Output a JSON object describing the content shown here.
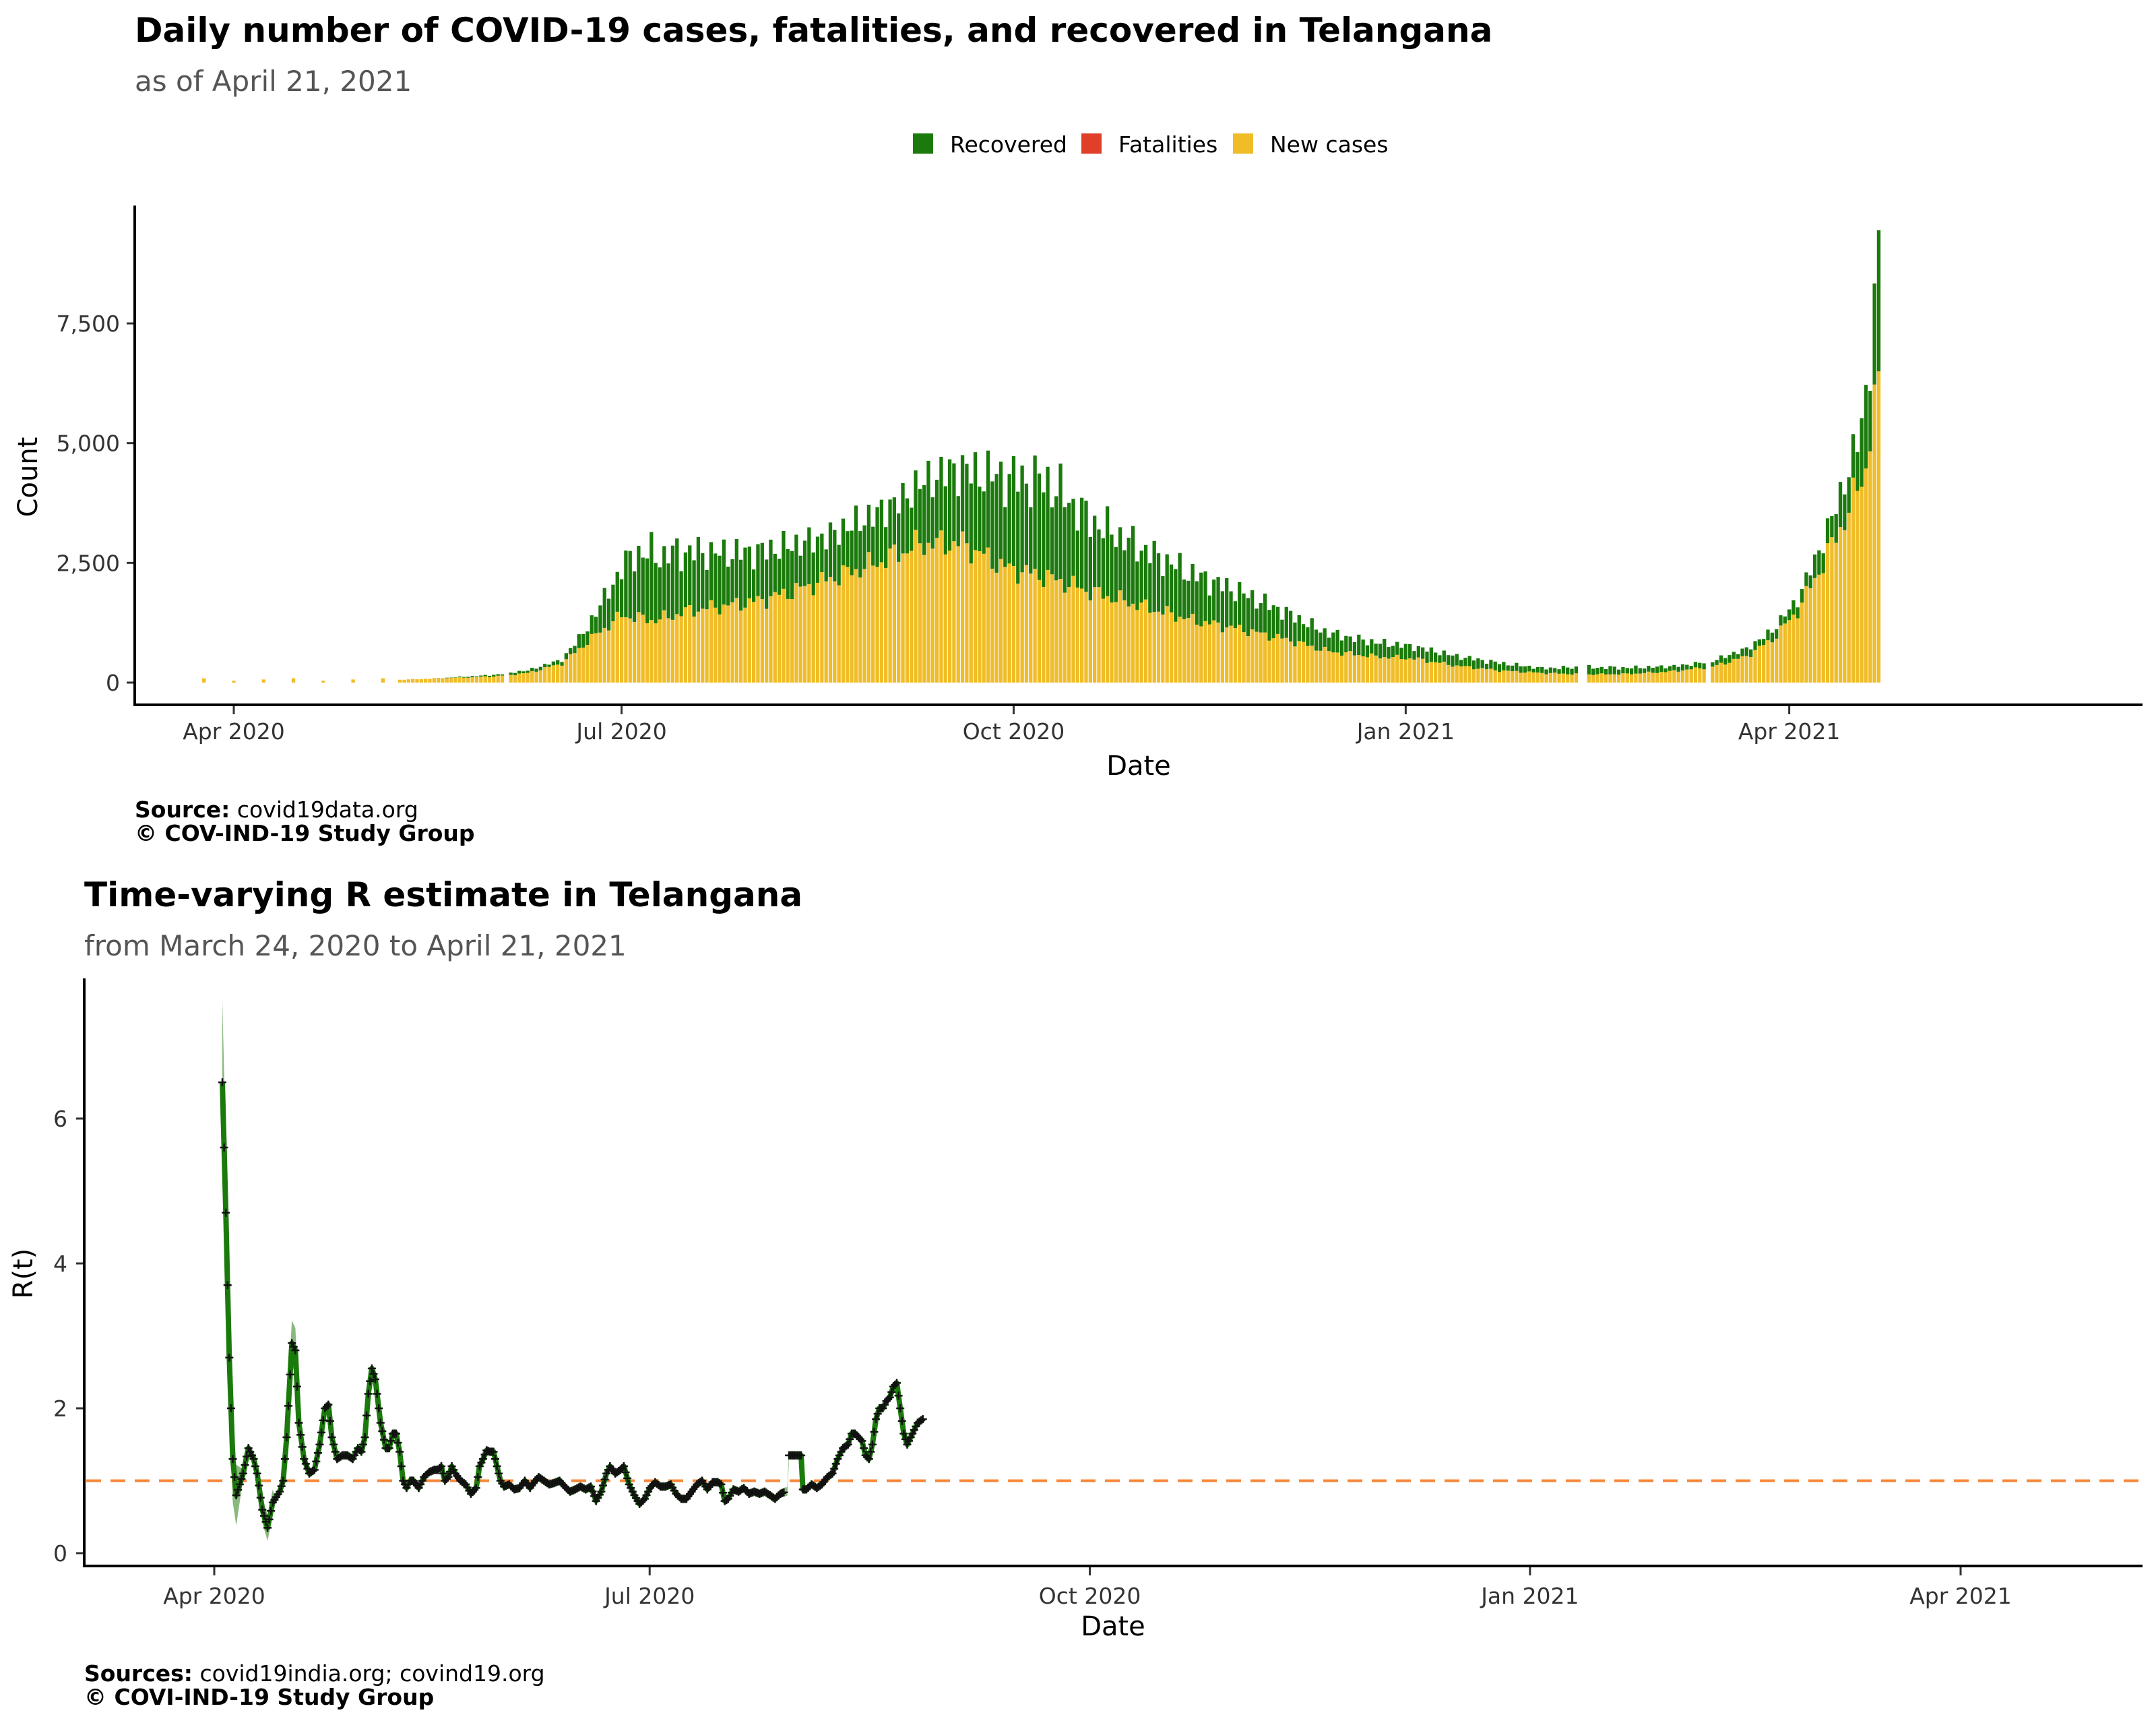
{
  "colors": {
    "recovered": "#1b7a0c",
    "fatalities": "#e0402a",
    "new_cases": "#f0bd28",
    "r_line": "#1b7a0c",
    "r_band": "#8ab87e",
    "threshold": "#f7883a"
  },
  "chart_data": [
    {
      "type": "bar",
      "stacked": true,
      "title": "Daily number of COVID-19 cases, fatalities, and recovered in Telangana",
      "subtitle": "as of April 21, 2021",
      "xlabel": "Date",
      "ylabel": "Count",
      "yticks": [
        0,
        2500,
        5000,
        7500
      ],
      "ytick_labels": [
        "0",
        "2,500",
        "5,000",
        "7,500"
      ],
      "ylim": [
        0,
        9500
      ],
      "xtick_labels": [
        "Apr 2020",
        "Jul 2020",
        "Oct 2020",
        "Jan 2021",
        "Apr 2021"
      ],
      "xtick_day_index": [
        9,
        100,
        192,
        284,
        374
      ],
      "legend": [
        "Recovered",
        "Fatalities",
        "New cases"
      ],
      "legend_position": "top-center",
      "series_note": "values per day starting 2020-03-23; day index = position in array",
      "keyframes_new_cases": [
        [
          0,
          0
        ],
        [
          20,
          0
        ],
        [
          48,
          60
        ],
        [
          70,
          130
        ],
        [
          78,
          200
        ],
        [
          86,
          400
        ],
        [
          94,
          1000
        ],
        [
          100,
          1400
        ],
        [
          108,
          1300
        ],
        [
          116,
          1500
        ],
        [
          124,
          1600
        ],
        [
          132,
          1700
        ],
        [
          140,
          1900
        ],
        [
          150,
          2200
        ],
        [
          160,
          2500
        ],
        [
          170,
          2900
        ],
        [
          180,
          2900
        ],
        [
          190,
          2400
        ],
        [
          200,
          2200
        ],
        [
          210,
          1900
        ],
        [
          222,
          1600
        ],
        [
          234,
          1300
        ],
        [
          246,
          1100
        ],
        [
          256,
          900
        ],
        [
          266,
          650
        ],
        [
          276,
          550
        ],
        [
          286,
          500
        ],
        [
          296,
          350
        ],
        [
          306,
          250
        ],
        [
          316,
          200
        ],
        [
          326,
          170
        ],
        [
          336,
          180
        ],
        [
          346,
          230
        ],
        [
          356,
          330
        ],
        [
          364,
          550
        ],
        [
          370,
          900
        ],
        [
          376,
          1500
        ],
        [
          382,
          2500
        ],
        [
          388,
          3600
        ],
        [
          392,
          4500
        ],
        [
          395,
          6500
        ]
      ],
      "keyframes_recovered": [
        [
          0,
          0
        ],
        [
          56,
          0
        ],
        [
          70,
          30
        ],
        [
          86,
          80
        ],
        [
          92,
          300
        ],
        [
          98,
          800
        ],
        [
          104,
          1400
        ],
        [
          112,
          1300
        ],
        [
          124,
          1100
        ],
        [
          136,
          1000
        ],
        [
          148,
          900
        ],
        [
          156,
          1000
        ],
        [
          166,
          1100
        ],
        [
          176,
          1500
        ],
        [
          182,
          1600
        ],
        [
          190,
          1900
        ],
        [
          200,
          2000
        ],
        [
          210,
          1500
        ],
        [
          222,
          1200
        ],
        [
          232,
          1000
        ],
        [
          244,
          800
        ],
        [
          254,
          600
        ],
        [
          264,
          400
        ],
        [
          276,
          300
        ],
        [
          286,
          250
        ],
        [
          296,
          200
        ],
        [
          306,
          160
        ],
        [
          316,
          100
        ],
        [
          326,
          150
        ],
        [
          340,
          120
        ],
        [
          350,
          100
        ],
        [
          360,
          140
        ],
        [
          368,
          170
        ],
        [
          376,
          240
        ],
        [
          384,
          550
        ],
        [
          390,
          1000
        ],
        [
          393,
          1600
        ],
        [
          395,
          2900
        ]
      ],
      "annotation_peak_total": 9450,
      "caption_label": "Source:",
      "caption_value": " covid19data.org",
      "copyright": "© COV-IND-19 Study Group"
    },
    {
      "type": "line",
      "title": "Time-varying R estimate in Telangana",
      "subtitle": "from March 24, 2020 to April 21, 2021",
      "xlabel": "Date",
      "ylabel": "R(t)",
      "yticks": [
        0,
        2,
        4,
        6
      ],
      "ytick_labels": [
        "0",
        "2",
        "4",
        "6"
      ],
      "ylim": [
        -0.2,
        7.7
      ],
      "xtick_labels": [
        "Apr 2020",
        "Jul 2020",
        "Oct 2020",
        "Jan 2021",
        "Apr 2021"
      ],
      "xtick_day_index": [
        0,
        91,
        183,
        275,
        365
      ],
      "reference_line": 1,
      "series_note": "R(t) daily from 2020-04-03 (day 0) to 2021-04-21",
      "keyframes_r": [
        [
          0,
          6.5
        ],
        [
          2,
          4.7
        ],
        [
          4,
          2.7
        ],
        [
          6,
          1.3
        ],
        [
          8,
          0.8
        ],
        [
          10,
          0.95
        ],
        [
          12,
          1.1
        ],
        [
          15,
          1.45
        ],
        [
          18,
          1.3
        ],
        [
          20,
          1.1
        ],
        [
          23,
          0.6
        ],
        [
          26,
          0.35
        ],
        [
          29,
          0.7
        ],
        [
          33,
          0.85
        ],
        [
          35,
          1.0
        ],
        [
          37,
          1.6
        ],
        [
          40,
          2.9
        ],
        [
          42,
          2.8
        ],
        [
          44,
          1.8
        ],
        [
          47,
          1.3
        ],
        [
          50,
          1.1
        ],
        [
          53,
          1.15
        ],
        [
          56,
          1.5
        ],
        [
          59,
          2.0
        ],
        [
          61,
          2.05
        ],
        [
          63,
          1.6
        ],
        [
          66,
          1.3
        ],
        [
          69,
          1.35
        ],
        [
          72,
          1.35
        ],
        [
          75,
          1.3
        ],
        [
          78,
          1.45
        ],
        [
          80,
          1.4
        ],
        [
          82,
          1.6
        ],
        [
          84,
          2.2
        ],
        [
          86,
          2.55
        ],
        [
          88,
          2.4
        ],
        [
          91,
          1.8
        ],
        [
          94,
          1.45
        ],
        [
          96,
          1.45
        ],
        [
          98,
          1.65
        ],
        [
          100,
          1.65
        ],
        [
          102,
          1.4
        ],
        [
          104,
          1.0
        ],
        [
          106,
          0.9
        ],
        [
          108,
          1.0
        ],
        [
          110,
          1.0
        ],
        [
          113,
          0.9
        ],
        [
          116,
          1.05
        ],
        [
          119,
          1.12
        ],
        [
          122,
          1.15
        ],
        [
          124,
          1.15
        ],
        [
          126,
          1.2
        ],
        [
          128,
          1.0
        ],
        [
          130,
          1.05
        ],
        [
          132,
          1.2
        ],
        [
          134,
          1.1
        ],
        [
          137,
          1.0
        ],
        [
          140,
          0.95
        ],
        [
          143,
          0.82
        ],
        [
          146,
          0.9
        ],
        [
          148,
          1.2
        ],
        [
          150,
          1.3
        ],
        [
          152,
          1.42
        ],
        [
          154,
          1.4
        ],
        [
          156,
          1.4
        ],
        [
          158,
          1.2
        ],
        [
          160,
          1.0
        ],
        [
          162,
          0.92
        ],
        [
          165,
          0.95
        ],
        [
          168,
          0.88
        ],
        [
          171,
          0.9
        ],
        [
          174,
          1.0
        ],
        [
          177,
          0.9
        ],
        [
          180,
          1.0
        ],
        [
          182,
          1.05
        ],
        [
          185,
          1.0
        ],
        [
          188,
          0.95
        ],
        [
          191,
          0.97
        ],
        [
          194,
          1.0
        ],
        [
          197,
          0.92
        ],
        [
          200,
          0.85
        ],
        [
          203,
          0.88
        ],
        [
          206,
          0.92
        ],
        [
          209,
          0.88
        ],
        [
          212,
          0.92
        ],
        [
          215,
          0.72
        ],
        [
          218,
          0.85
        ],
        [
          221,
          1.1
        ],
        [
          223,
          1.2
        ],
        [
          226,
          1.1
        ],
        [
          229,
          1.15
        ],
        [
          231,
          1.2
        ],
        [
          234,
          0.95
        ],
        [
          237,
          0.8
        ],
        [
          240,
          0.68
        ],
        [
          243,
          0.75
        ],
        [
          246,
          0.9
        ],
        [
          249,
          0.98
        ],
        [
          252,
          0.92
        ],
        [
          255,
          0.92
        ],
        [
          258,
          0.95
        ],
        [
          261,
          0.82
        ],
        [
          264,
          0.75
        ],
        [
          267,
          0.75
        ],
        [
          270,
          0.85
        ],
        [
          273,
          0.95
        ],
        [
          276,
          1.0
        ],
        [
          279,
          0.88
        ],
        [
          282,
          0.98
        ],
        [
          285,
          0.98
        ],
        [
          287,
          0.95
        ],
        [
          289,
          0.72
        ],
        [
          291,
          0.75
        ],
        [
          294,
          0.88
        ],
        [
          297,
          0.85
        ],
        [
          300,
          0.9
        ],
        [
          303,
          0.82
        ],
        [
          306,
          0.85
        ],
        [
          309,
          0.82
        ],
        [
          312,
          0.85
        ],
        [
          315,
          0.8
        ],
        [
          318,
          0.75
        ],
        [
          321,
          0.82
        ],
        [
          324,
          0.85
        ],
        [
          327,
          0.85
        ],
        [
          330,
          0.95
        ],
        [
          333,
          0.88
        ],
        [
          336,
          0.88
        ],
        [
          339,
          0.95
        ],
        [
          342,
          0.9
        ],
        [
          345,
          0.95
        ],
        [
          348,
          1.05
        ],
        [
          351,
          1.1
        ],
        [
          354,
          1.3
        ],
        [
          357,
          1.45
        ],
        [
          360,
          1.5
        ],
        [
          362,
          1.65
        ],
        [
          364,
          1.65
        ],
        [
          366,
          1.6
        ],
        [
          368,
          1.55
        ],
        [
          370,
          1.35
        ],
        [
          372,
          1.3
        ],
        [
          374,
          1.5
        ],
        [
          376,
          1.85
        ],
        [
          378,
          2.0
        ],
        [
          380,
          2.0
        ],
        [
          382,
          2.1
        ],
        [
          384,
          2.15
        ],
        [
          386,
          2.3
        ],
        [
          388,
          2.35
        ],
        [
          390,
          2.0
        ],
        [
          392,
          1.65
        ],
        [
          394,
          1.5
        ],
        [
          396,
          1.6
        ],
        [
          398,
          1.7
        ],
        [
          400,
          1.8
        ],
        [
          403,
          1.85
        ]
      ],
      "gap_note": "line absent roughly days 326-328 then resumes near 1.35",
      "caption_label": "Sources:",
      "caption_value": " covid19india.org; covind19.org",
      "copyright": "© COVI-IND-19 Study Group"
    }
  ]
}
